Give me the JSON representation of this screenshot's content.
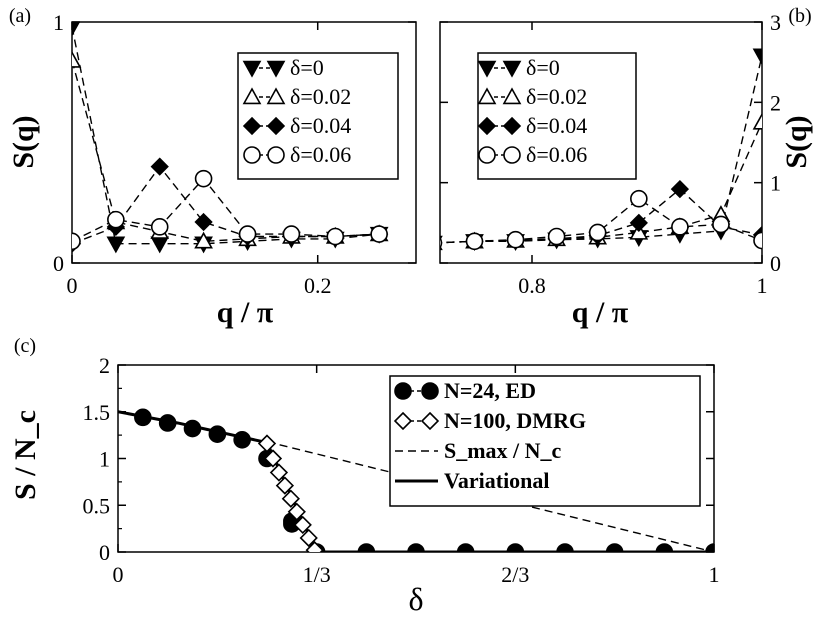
{
  "chart_data": [
    {
      "panel_label": "(a)",
      "type": "line",
      "xlabel": "q / π",
      "ylabel": "S(q)",
      "x_ticks": [
        "0",
        "0.2"
      ],
      "y_ticks": [
        "0",
        "1"
      ],
      "xlim": [
        0,
        0.28
      ],
      "ylim": [
        0,
        1.0
      ],
      "legend_position": "top-right",
      "series": [
        {
          "name": "δ=0",
          "marker": "filled-triangle-down",
          "x": [
            0,
            0.0357,
            0.0714,
            0.1071,
            0.1429,
            0.1786,
            0.2143,
            0.25
          ],
          "y": [
            0.98,
            0.08,
            0.08,
            0.08,
            0.09,
            0.1,
            0.1,
            0.12
          ]
        },
        {
          "name": "δ=0.02",
          "marker": "open-triangle-up",
          "x": [
            0,
            0.0357,
            0.0714,
            0.1071,
            0.1429,
            0.1786,
            0.2143,
            0.25
          ],
          "y": [
            0.84,
            0.17,
            0.13,
            0.09,
            0.1,
            0.11,
            0.11,
            0.12
          ]
        },
        {
          "name": "δ=0.04",
          "marker": "filled-diamond",
          "x": [
            0,
            0.0357,
            0.0714,
            0.1071,
            0.1429,
            0.1786,
            0.2143,
            0.25
          ],
          "y": [
            0.08,
            0.15,
            0.4,
            0.17,
            0.11,
            0.11,
            0.11,
            0.12
          ]
        },
        {
          "name": "δ=0.06",
          "marker": "open-circle",
          "x": [
            0,
            0.0357,
            0.0714,
            0.1071,
            0.1429,
            0.1786,
            0.2143,
            0.25
          ],
          "y": [
            0.09,
            0.18,
            0.15,
            0.35,
            0.12,
            0.12,
            0.11,
            0.12
          ]
        }
      ]
    },
    {
      "panel_label": "(b)",
      "type": "line",
      "xlabel": "q / π",
      "ylabel": "S(q)",
      "x_ticks": [
        "0.8",
        "1"
      ],
      "y_ticks": [
        "0",
        "1",
        "2",
        "3"
      ],
      "xlim": [
        0.72,
        1.0
      ],
      "ylim": [
        0,
        3
      ],
      "legend_position": "top-left",
      "series": [
        {
          "name": "δ=0",
          "marker": "filled-triangle-down",
          "x": [
            0.7143,
            0.75,
            0.7857,
            0.8214,
            0.8571,
            0.8929,
            0.9286,
            0.9643,
            1.0
          ],
          "y": [
            0.25,
            0.27,
            0.27,
            0.29,
            0.3,
            0.32,
            0.36,
            0.4,
            2.58
          ]
        },
        {
          "name": "δ=0.02",
          "marker": "open-triangle-up",
          "x": [
            0.7143,
            0.75,
            0.7857,
            0.8214,
            0.8571,
            0.8929,
            0.9286,
            0.9643,
            1.0
          ],
          "y": [
            0.25,
            0.27,
            0.28,
            0.3,
            0.32,
            0.38,
            0.45,
            0.6,
            1.75
          ]
        },
        {
          "name": "δ=0.04",
          "marker": "filled-diamond",
          "x": [
            0.7143,
            0.75,
            0.7857,
            0.8214,
            0.8571,
            0.8929,
            0.9286,
            0.9643,
            1.0
          ],
          "y": [
            0.25,
            0.27,
            0.28,
            0.3,
            0.34,
            0.5,
            0.92,
            0.45,
            0.35
          ]
        },
        {
          "name": "δ=0.06",
          "marker": "open-circle",
          "x": [
            0.7143,
            0.75,
            0.7857,
            0.8214,
            0.8571,
            0.8929,
            0.9286,
            0.9643,
            1.0
          ],
          "y": [
            0.25,
            0.27,
            0.29,
            0.33,
            0.38,
            0.8,
            0.45,
            0.48,
            0.28
          ]
        }
      ]
    },
    {
      "panel_label": "(c)",
      "type": "line",
      "xlabel": "δ",
      "ylabel": "S / N_c",
      "x_ticks": [
        "0",
        "1/3",
        "2/3",
        "1"
      ],
      "y_ticks": [
        "0",
        "0.5",
        "1",
        "1.5",
        "2"
      ],
      "xlim": [
        0,
        1
      ],
      "ylim": [
        0,
        2
      ],
      "legend_position": "top-right",
      "series": [
        {
          "name": "N=24, ED",
          "marker": "filled-circle",
          "x": [
            0.0417,
            0.0833,
            0.125,
            0.1667,
            0.2083,
            0.2917,
            0.3333,
            0.4167,
            0.5,
            0.5833,
            0.6667,
            0.75,
            0.8333,
            0.9167,
            1.0
          ],
          "y": [
            1.44,
            1.38,
            1.32,
            1.26,
            1.2,
            0.33,
            0.0,
            0.0,
            0.0,
            0.0,
            0.0,
            0.0,
            0.0,
            0.0,
            0.0
          ],
          "extra_points": {
            "x": [
              0.25,
              0.2917
            ],
            "y": [
              1.0,
              0.3
            ]
          }
        },
        {
          "name": "N=100, DMRG",
          "marker": "open-diamond",
          "x": [
            0.25,
            0.26,
            0.27,
            0.28,
            0.29,
            0.3,
            0.31,
            0.32,
            0.33
          ],
          "y": [
            1.16,
            1.0,
            0.85,
            0.71,
            0.57,
            0.43,
            0.29,
            0.15,
            0.02
          ]
        },
        {
          "name": "S_max / N_c",
          "style": "dashed",
          "x": [
            0.25,
            1.0
          ],
          "y": [
            1.18,
            0.0
          ]
        },
        {
          "name": "Variational",
          "style": "solid-thick",
          "x": [
            0,
            0.05,
            0.1,
            0.15,
            0.2,
            0.25,
            0.3333,
            1.0
          ],
          "y": [
            1.5,
            1.44,
            1.38,
            1.31,
            1.24,
            1.17,
            0.0,
            0.0
          ]
        }
      ]
    }
  ]
}
